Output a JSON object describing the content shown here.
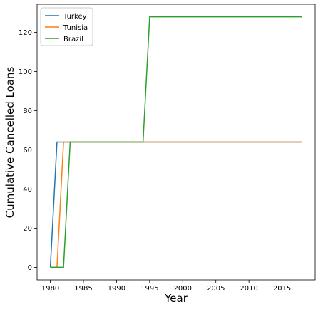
{
  "chart_data": {
    "type": "line",
    "xlabel": "Year",
    "ylabel": "Cumulative Cancelled Loans",
    "xlim": [
      1978,
      2020
    ],
    "ylim": [
      -6.4,
      134.4
    ],
    "xticks": [
      1980,
      1985,
      1990,
      1995,
      2000,
      2005,
      2010,
      2015
    ],
    "yticks": [
      0,
      20,
      40,
      60,
      80,
      100,
      120
    ],
    "grid": false,
    "legend_position": "top-left",
    "series": [
      {
        "name": "Turkey",
        "color": "#1f77b4",
        "x": [
          1980,
          1981,
          2018
        ],
        "y": [
          0,
          64,
          64
        ]
      },
      {
        "name": "Tunisia",
        "color": "#ff7f0e",
        "x": [
          1980,
          1981,
          1982,
          2018
        ],
        "y": [
          0,
          0,
          64,
          64
        ]
      },
      {
        "name": "Brazil",
        "color": "#2ca02c",
        "x": [
          1980,
          1982,
          1983,
          1994,
          1995,
          2018
        ],
        "y": [
          0,
          0,
          64,
          64,
          128,
          128
        ]
      }
    ]
  }
}
